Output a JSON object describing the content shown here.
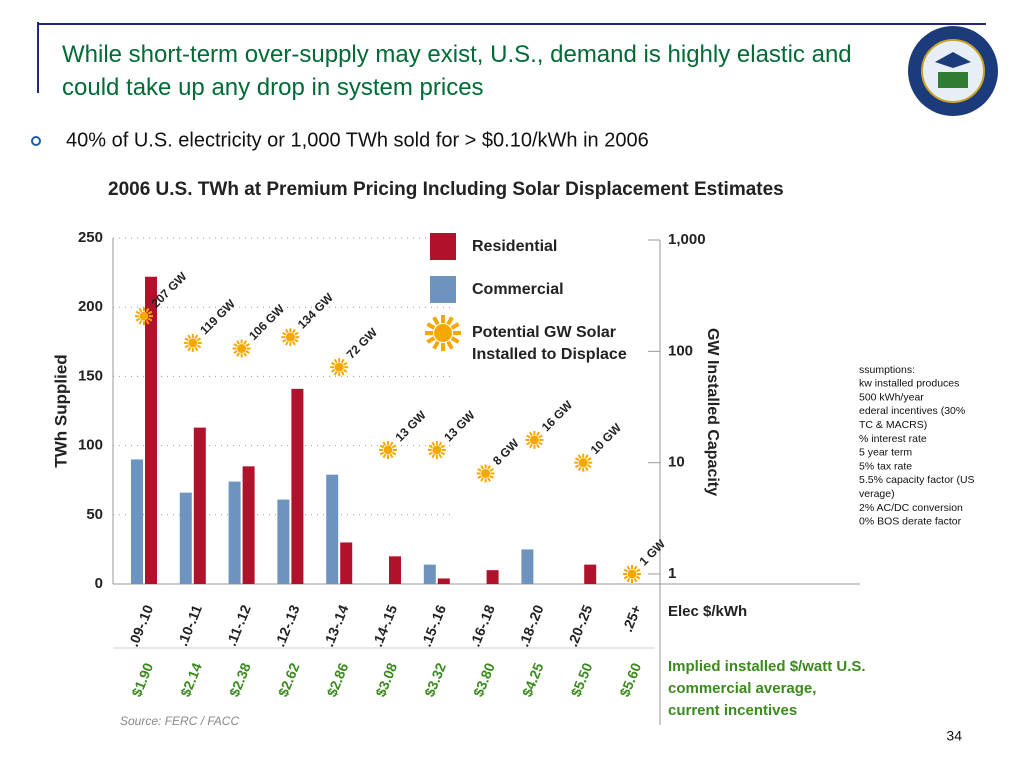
{
  "slide": {
    "title": "While short-term over-supply may exist, U.S., demand is highly elastic and could take up any drop in system prices",
    "bullet": "40% of U.S. electricity or 1,000 TWh sold for > $0.10/kWh in 2006",
    "page_number": "34",
    "assumptions": [
      "ssumptions:",
      "kw installed produces",
      "500 kWh/year",
      "ederal incentives (30%",
      "TC & MACRS)",
      "% interest rate",
      "5 year term",
      "5% tax rate",
      "5.5% capacity factor (US",
      "verage)",
      "2% AC/DC conversion",
      "0% BOS derate factor"
    ]
  },
  "chart_data": {
    "type": "bar",
    "title": "2006 U.S. TWh at Premium Pricing Including Solar Displacement Estimates",
    "categories": [
      ".09-.10",
      ".10-.11",
      ".11-.12",
      ".12-.13",
      ".13-.14",
      ".14-.15",
      ".15-.16",
      ".16-.18",
      ".18-.20",
      ".20-.25",
      ".25+"
    ],
    "series": [
      {
        "name": "Residential",
        "color": "#b0112b",
        "values": [
          222,
          113,
          85,
          141,
          30,
          20,
          4,
          10,
          0,
          14,
          0
        ]
      },
      {
        "name": "Commercial",
        "color": "#6d94bf",
        "values": [
          90,
          66,
          74,
          61,
          79,
          0,
          14,
          0,
          25,
          0,
          0
        ]
      },
      {
        "name": "Potential GW Solar Installed to Displace",
        "type": "scatter",
        "axis": "y2",
        "color": "#f6a800",
        "values": [
          207,
          119,
          106,
          134,
          72,
          13,
          13,
          8,
          16,
          10,
          1
        ],
        "value_labels": [
          "207 GW",
          "119 GW",
          "106 GW",
          "134 GW",
          "72 GW",
          "13 GW",
          "13 GW",
          "8 GW",
          "16 GW",
          "10 GW",
          "1 GW"
        ]
      }
    ],
    "ylabel": "TWh Supplied",
    "y2label": "GW Installed Capacity",
    "xlabel": "Elec $/kWh",
    "ylim": [
      0,
      250
    ],
    "yticks": [
      0,
      50,
      100,
      150,
      200,
      250
    ],
    "y2lim": [
      1,
      1000
    ],
    "y2ticks": [
      1,
      10,
      100,
      {
        "value": 1000,
        "label": "1,000"
      }
    ],
    "y2scale": "log",
    "grid": true,
    "price_label": "Implied installed $/watt U.S. commercial average, current incentives",
    "implied_prices": [
      "$1.90",
      "$2.14",
      "$2.38",
      "$2.62",
      "$2.86",
      "$3.08",
      "$3.32",
      "$3.80",
      "$4.25",
      "$5.50",
      "$5.60"
    ],
    "source": "Source: FERC / FACC"
  }
}
